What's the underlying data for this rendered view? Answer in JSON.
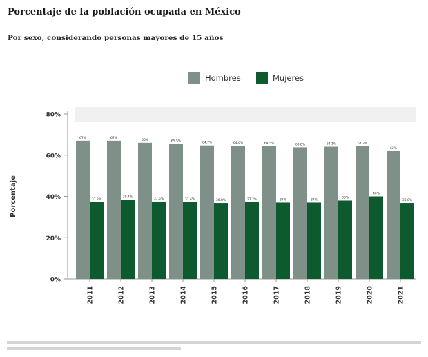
{
  "header": {
    "title": "Porcentaje de la población ocupada en México",
    "subtitle": "Por sexo, considerando personas mayores de 15 años"
  },
  "colors": {
    "hombres": "#7f9088",
    "mujeres": "#0d5a2e",
    "axis": "#9a9a9a",
    "grid": "#f0f0f0"
  },
  "chart_data": {
    "type": "bar",
    "title": "Porcentaje de la población ocupada en México",
    "subtitle": "Por sexo, considerando personas mayores de 15 años",
    "xlabel": "",
    "ylabel": "Porcentaje",
    "ylim": [
      0,
      80
    ],
    "yticks": [
      0,
      20,
      40,
      60,
      80
    ],
    "ytick_labels": [
      "0%",
      "20%",
      "40%",
      "60%",
      "80%"
    ],
    "grid": false,
    "legend_position": "top",
    "categories": [
      "2011",
      "2012",
      "2013",
      "2014",
      "2015",
      "2016",
      "2017",
      "2018",
      "2019",
      "2020",
      "2021"
    ],
    "series": [
      {
        "name": "Hombres",
        "values": [
          67.0,
          67.0,
          66.0,
          65.5,
          64.7,
          64.6,
          64.5,
          63.8,
          64.1,
          64.3,
          62.0
        ],
        "labels": [
          "67%",
          "67%",
          "66%",
          "65.5%",
          "64.7%",
          "64.6%",
          "64.5%",
          "63.8%",
          "64.1%",
          "64.3%",
          "62%"
        ]
      },
      {
        "name": "Mujeres",
        "values": [
          37.2,
          38.4,
          37.5,
          37.4,
          36.8,
          37.2,
          37.0,
          37.0,
          38.0,
          40.0,
          36.8
        ],
        "labels": [
          "37.2%",
          "38.4%",
          "37.5%",
          "37.4%",
          "36.8%",
          "37.2%",
          "37%",
          "37%",
          "38%",
          "40%",
          "36.8%"
        ]
      }
    ]
  }
}
